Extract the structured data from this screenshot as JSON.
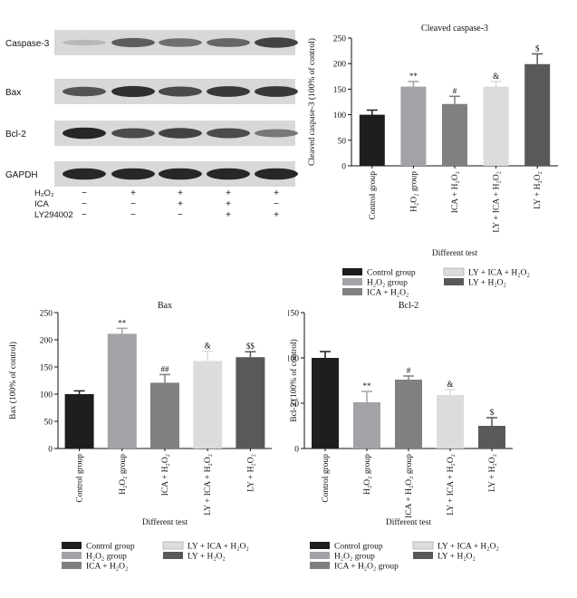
{
  "colors": {
    "control": "#1e1e1e",
    "h2o2": "#a3a3a7",
    "ica": "#808083",
    "ly_ica": "#dcdcdc",
    "ly": "#59595c",
    "blot_band": "#2a2a2a",
    "blot_bg": "#d8d8d8"
  },
  "western_blot": {
    "rows": [
      {
        "label": "Caspase-3",
        "intensity": [
          0.15,
          0.65,
          0.55,
          0.6,
          0.8
        ]
      },
      {
        "label": "Bax",
        "intensity": [
          0.7,
          0.9,
          0.75,
          0.85,
          0.85
        ]
      },
      {
        "label": "Bcl-2",
        "intensity": [
          0.95,
          0.75,
          0.8,
          0.75,
          0.5
        ]
      },
      {
        "label": "GAPDH",
        "intensity": [
          0.95,
          0.95,
          0.95,
          0.95,
          0.95
        ]
      }
    ],
    "treatments": [
      {
        "label": "H₂O₂",
        "marks": [
          "−",
          "+",
          "+",
          "+",
          "+"
        ]
      },
      {
        "label": "ICA",
        "marks": [
          "−",
          "−",
          "+",
          "+",
          "−"
        ]
      },
      {
        "label": "LY294002",
        "marks": [
          "−",
          "−",
          "−",
          "+",
          "+"
        ]
      }
    ]
  },
  "chart_data": [
    {
      "type": "bar",
      "title": "Cleaved caspase-3",
      "ylabel": "Cleaved caspase-3 (100% of control)",
      "xlabel": "Different test",
      "ylim": [
        0,
        250
      ],
      "yticks": [
        0,
        50,
        100,
        150,
        200,
        250
      ],
      "categories": [
        "Control group",
        "H₂O₂ group",
        "ICA + H₂O₂",
        "LY + ICA + H₂O₂",
        "LY + H₂O₂"
      ],
      "values": [
        100,
        155,
        121,
        155,
        199
      ],
      "errors": [
        9,
        10,
        15,
        10,
        20
      ],
      "annotations": [
        "",
        "**",
        "#",
        "&",
        "$"
      ],
      "legend": [
        "Control group",
        "H₂O₂ group",
        "ICA + H₂O₂",
        "LY + ICA + H₂O₂",
        "LY + H₂O₂"
      ],
      "grid": false
    },
    {
      "type": "bar",
      "title": "Bax",
      "ylabel": "Bax (100% of control)",
      "xlabel": "Different test",
      "ylim": [
        0,
        250
      ],
      "yticks": [
        0,
        50,
        100,
        150,
        200,
        250
      ],
      "categories": [
        "Control group",
        "H₂O₂ group",
        "ICA + H₂O₂",
        "LY + ICA + H₂O₂",
        "LY + H₂O₂"
      ],
      "values": [
        100,
        211,
        121,
        161,
        168
      ],
      "errors": [
        6,
        10,
        15,
        18,
        10
      ],
      "annotations": [
        "",
        "**",
        "##",
        "&",
        "$$"
      ],
      "legend": [
        "Control group",
        "H₂O₂ group",
        "ICA + H₂O₂",
        "LY + ICA + H₂O₂",
        "LY + H₂O₂"
      ],
      "grid": false
    },
    {
      "type": "bar",
      "title": "Bcl-2",
      "ylabel": "Bcl-2 (100% of control)",
      "xlabel": "Different test",
      "ylim": [
        0,
        150
      ],
      "yticks": [
        0,
        50,
        100,
        150
      ],
      "categories": [
        "Control group",
        "H₂O₂ group",
        "ICA + H₂O₂ group",
        "LY + ICA + H₂O₂",
        "LY + H₂O₂"
      ],
      "values": [
        100,
        51,
        76,
        59,
        25
      ],
      "errors": [
        7,
        12,
        4,
        6,
        9
      ],
      "annotations": [
        "",
        "**",
        "#",
        "&",
        "$"
      ],
      "legend": [
        "Control group",
        "H₂O₂ group",
        "ICA + H₂O₂ group",
        "LY + ICA + H₂O₂",
        "LY + H₂O₂"
      ],
      "grid": false
    }
  ]
}
